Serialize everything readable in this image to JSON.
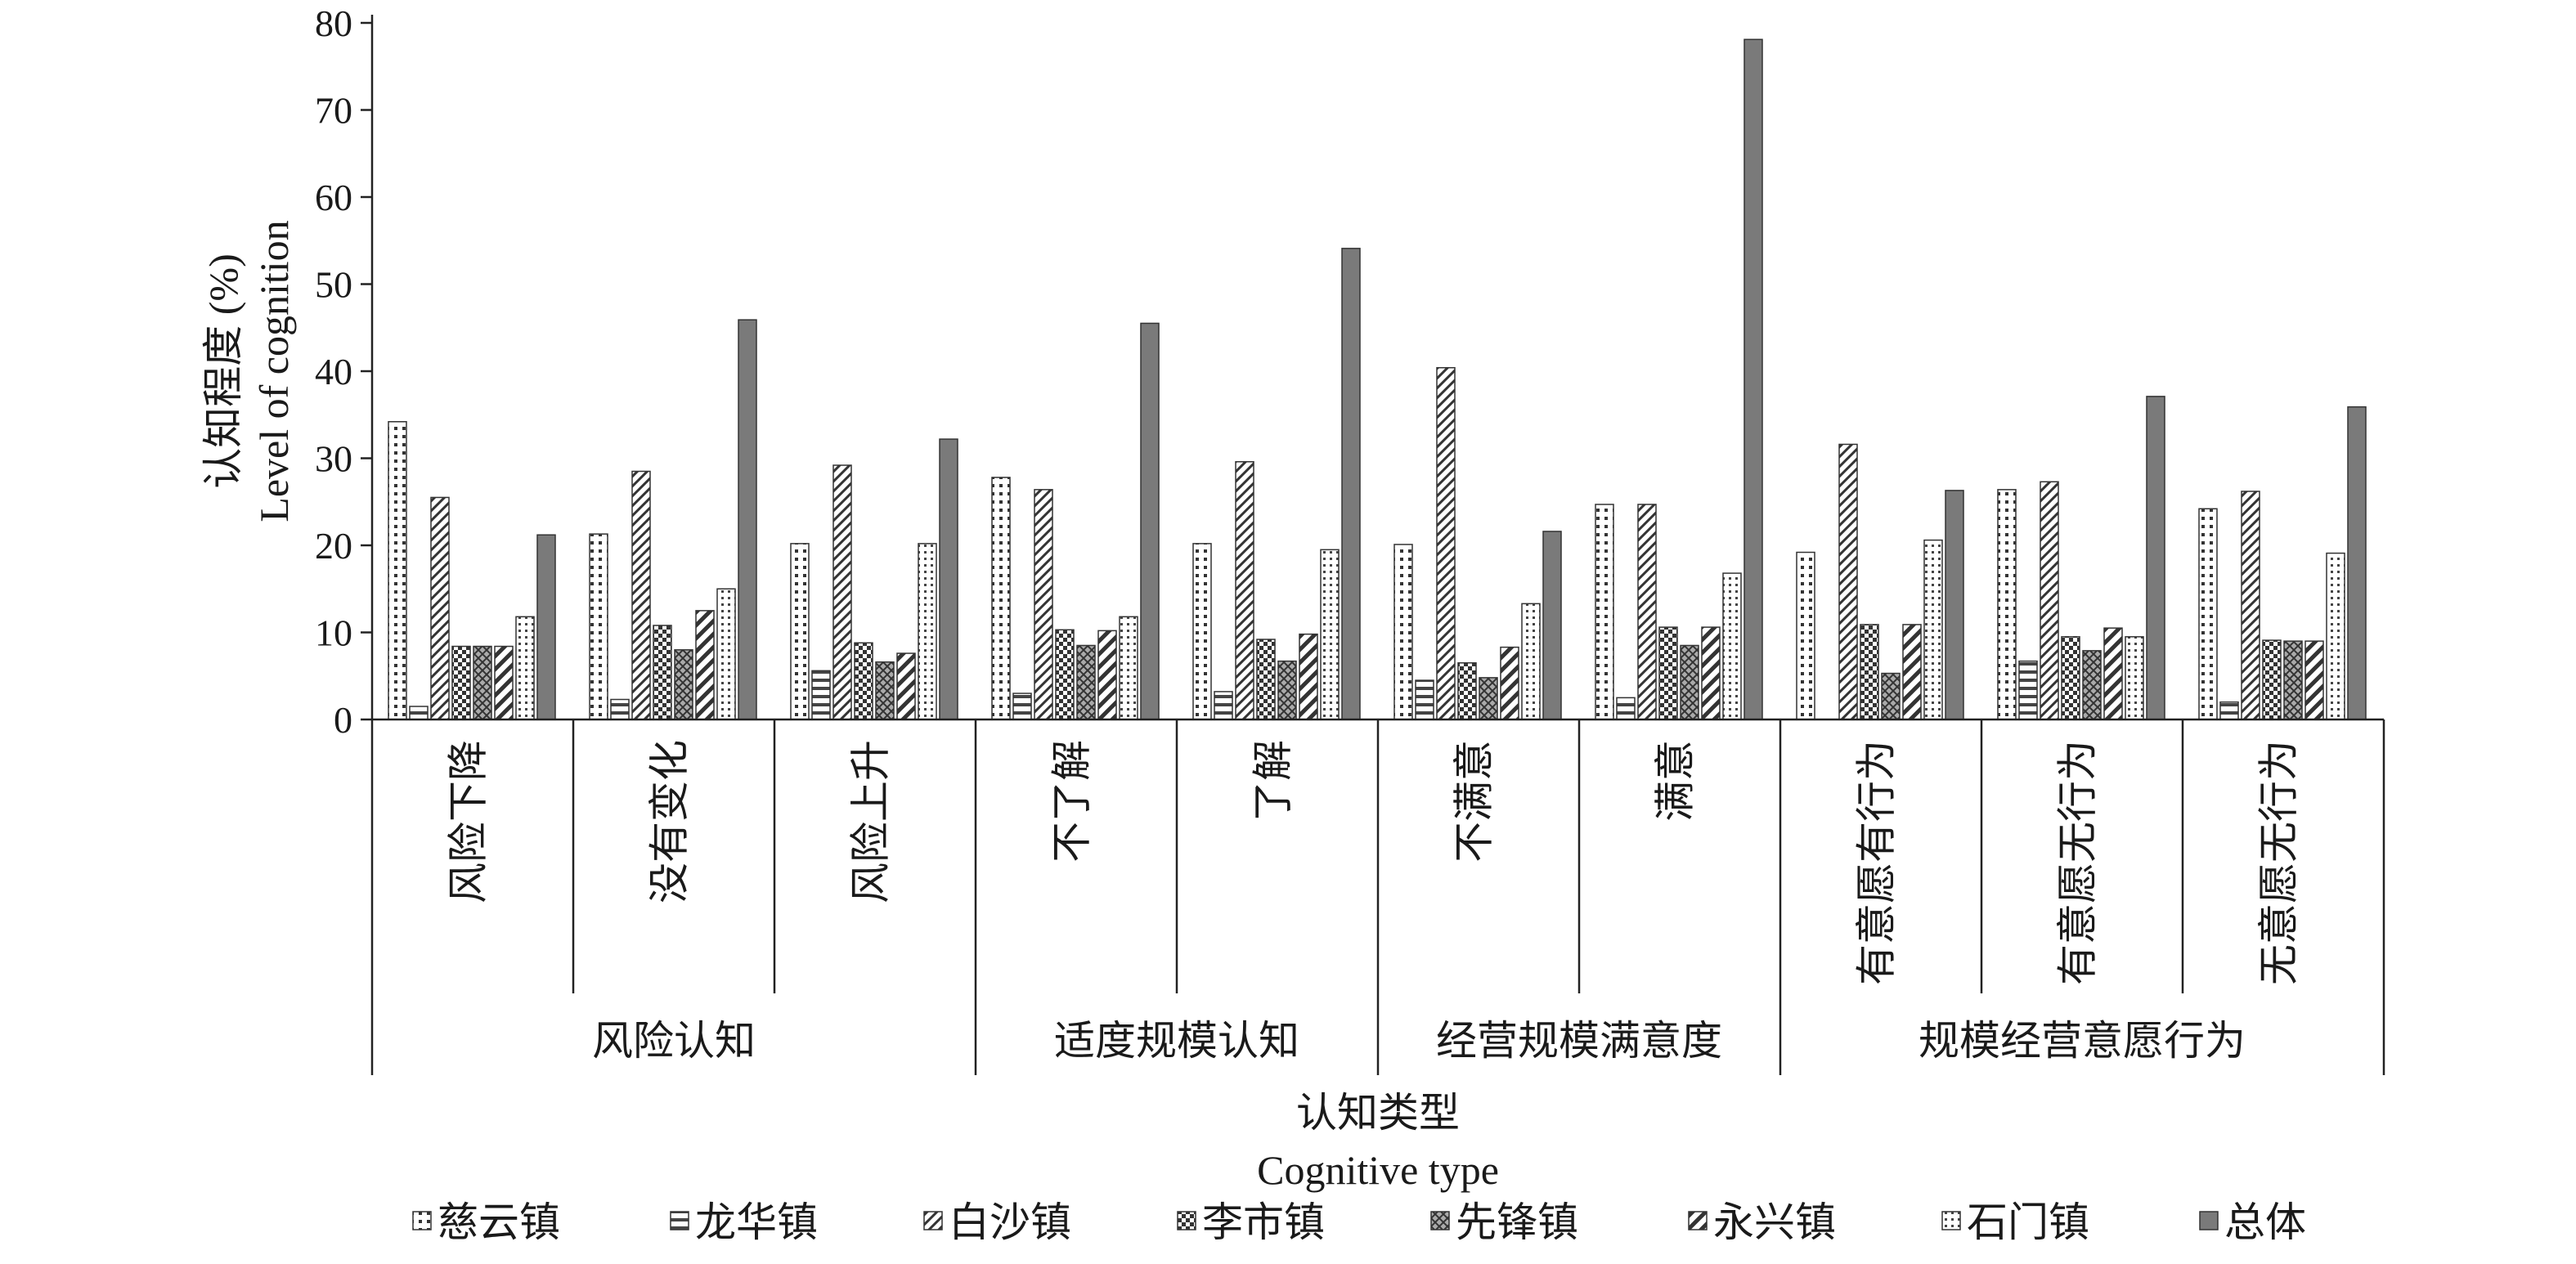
{
  "chart_data": {
    "type": "bar",
    "ylabel_cn": "认知程度 (%)",
    "ylabel_en": "Level of cognition",
    "xlabel_cn": "认知类型",
    "xlabel_en": "Cognitive type",
    "ylim": [
      0,
      80
    ],
    "yticks": [
      0,
      10,
      20,
      30,
      40,
      50,
      60,
      70,
      80
    ],
    "grid": false,
    "legend_position": "bottom",
    "categories": [
      "风险下降",
      "没有变化",
      "风险上升",
      "不了解",
      "了解",
      "不满意",
      "满意",
      "有意愿有行为",
      "有意愿无行为",
      "无意愿无行为"
    ],
    "groups": [
      {
        "label": "风险认知",
        "categories": [
          "风险下降",
          "没有变化",
          "风险上升"
        ]
      },
      {
        "label": "适度规模认知",
        "categories": [
          "不了解",
          "了解"
        ]
      },
      {
        "label": "经营规模满意度",
        "categories": [
          "不满意",
          "满意"
        ]
      },
      {
        "label": "规模经营意愿行为",
        "categories": [
          "有意愿有行为",
          "有意愿无行为",
          "无意愿无行为"
        ]
      }
    ],
    "series": [
      {
        "name": "慈云镇",
        "pattern": "dots",
        "values": [
          34.2,
          21.3,
          20.2,
          27.8,
          20.2,
          20.1,
          24.7,
          19.2,
          26.4,
          24.2
        ]
      },
      {
        "name": "龙华镇",
        "pattern": "hlines",
        "values": [
          1.5,
          2.3,
          5.6,
          3.0,
          3.2,
          4.5,
          2.5,
          0,
          6.7,
          2.0
        ]
      },
      {
        "name": "白沙镇",
        "pattern": "diag",
        "values": [
          25.5,
          28.5,
          29.2,
          26.4,
          29.6,
          40.4,
          24.7,
          31.6,
          27.3,
          26.2
        ]
      },
      {
        "name": "李市镇",
        "pattern": "checker",
        "values": [
          8.4,
          10.8,
          8.8,
          10.3,
          9.2,
          6.5,
          10.6,
          10.9,
          9.5,
          9.1
        ]
      },
      {
        "name": "先锋镇",
        "pattern": "cross",
        "values": [
          8.4,
          8.0,
          6.6,
          8.5,
          6.7,
          4.8,
          8.5,
          5.3,
          7.9,
          9.0
        ]
      },
      {
        "name": "永兴镇",
        "pattern": "bigdiag",
        "values": [
          8.4,
          12.5,
          7.6,
          10.2,
          9.8,
          8.3,
          10.6,
          10.9,
          10.5,
          9.0
        ]
      },
      {
        "name": "石门镇",
        "pattern": "smalldots",
        "values": [
          11.8,
          15.0,
          20.2,
          11.8,
          19.5,
          13.3,
          16.8,
          20.6,
          9.5,
          19.1
        ]
      },
      {
        "name": "总体",
        "pattern": "solid",
        "values": [
          21.2,
          45.9,
          32.2,
          45.5,
          54.1,
          21.6,
          78.1,
          26.3,
          37.1,
          35.9
        ]
      }
    ]
  }
}
